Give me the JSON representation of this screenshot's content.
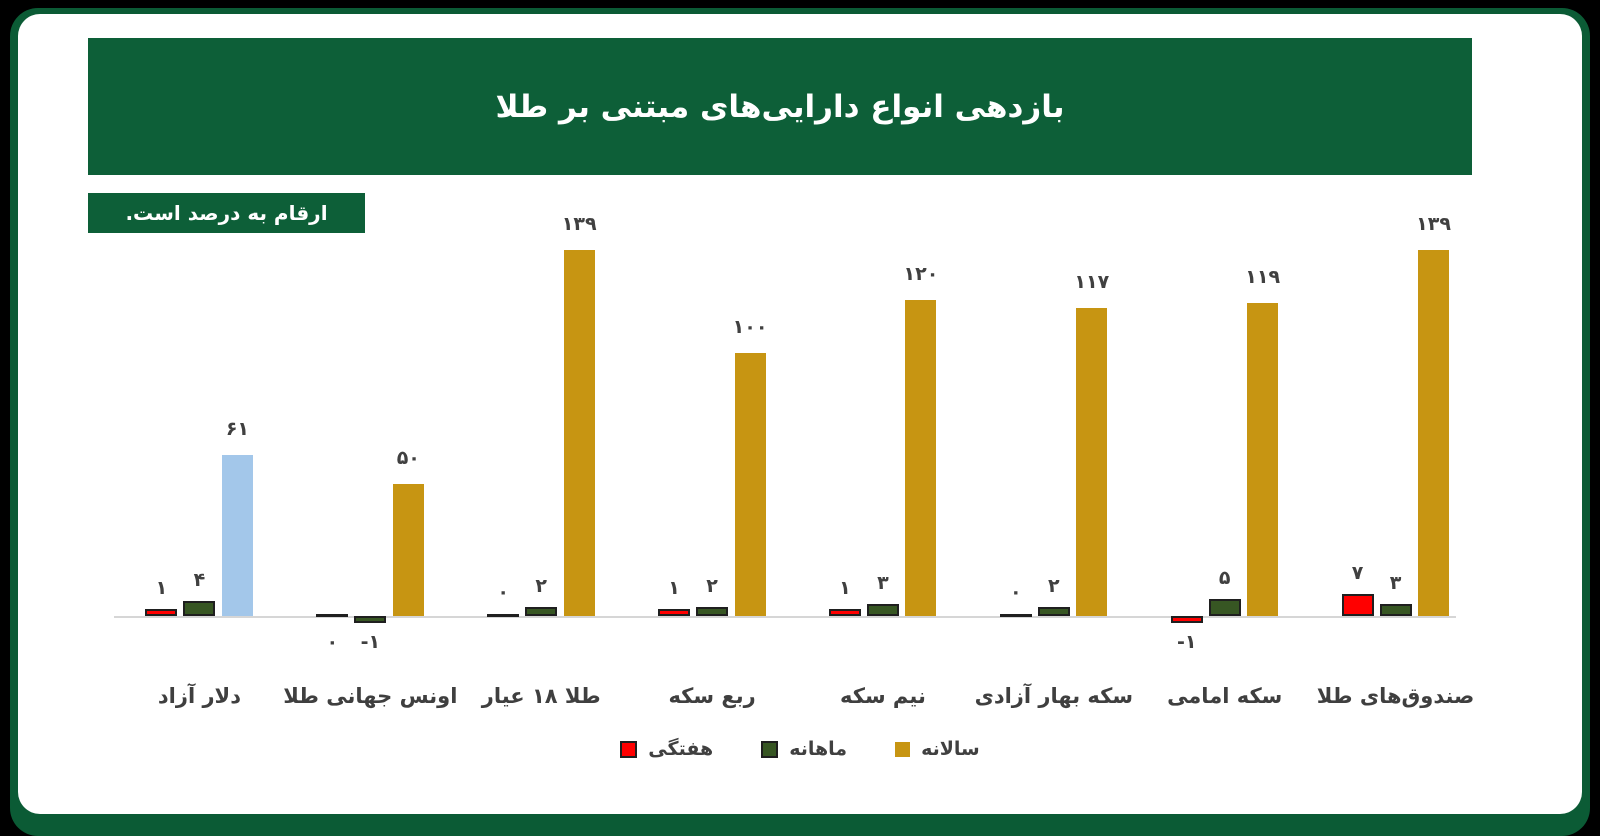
{
  "header": {
    "title": "بازدهی انواع دارایی‌های مبتنی بر طلا"
  },
  "note_badge": {
    "text": "ارقام به درصد است."
  },
  "colors": {
    "frame_green": "#0B5B35",
    "header_green": "#0D5F38",
    "badge_green": "#0D5F38",
    "axis_gray": "#D6D6D6",
    "label_gray": "#404040",
    "weekly_red": "#FF0000",
    "monthly_green": "#375623",
    "annual_gold": "#C79512",
    "annual_blue_override": "#A3C7EA",
    "bar_border": "#1F1F1F"
  },
  "legend": {
    "items": [
      {
        "key": "weekly",
        "label": "هفتگی",
        "color": "#FF0000",
        "bordered": true
      },
      {
        "key": "monthly",
        "label": "ماهانه",
        "color": "#375623",
        "bordered": true
      },
      {
        "key": "annual",
        "label": "سالانه",
        "color": "#C79512",
        "bordered": false
      }
    ]
  },
  "chart_data": {
    "type": "bar",
    "title": "بازدهی انواع دارایی‌های مبتنی بر طلا",
    "unit_note": "ارقام به درصد است.",
    "unit": "percent",
    "ylim": [
      -10,
      150
    ],
    "grid": false,
    "legend_position": "bottom-center",
    "categories": [
      "دلار آزاد",
      "اونس جهانی طلا",
      "طلا ۱۸ عیار",
      "ربع سکه",
      "نیم سکه",
      "سکه بهار آزادی",
      "سکه امامی",
      "صندوق‌های طلا"
    ],
    "series": [
      {
        "key": "weekly",
        "name": "هفتگی",
        "color": "#FF0000",
        "bordered": true,
        "values": [
          1,
          0,
          0,
          1,
          1,
          0,
          -1,
          7
        ],
        "labels_fa": [
          "۱",
          "۰",
          "۰",
          "۱",
          "۱",
          "۰",
          "-۱",
          "۷"
        ],
        "label_below": [
          false,
          true,
          false,
          false,
          false,
          false,
          true,
          false
        ]
      },
      {
        "key": "monthly",
        "name": "ماهانه",
        "color": "#375623",
        "bordered": true,
        "values": [
          4,
          -1,
          2,
          2,
          3,
          2,
          5,
          3
        ],
        "labels_fa": [
          "۴",
          "-۱",
          "۲",
          "۲",
          "۳",
          "۲",
          "۵",
          "۳"
        ],
        "label_below": [
          false,
          true,
          false,
          false,
          false,
          false,
          false,
          false
        ]
      },
      {
        "key": "annual",
        "name": "سالانه",
        "color": "#C79512",
        "bordered": false,
        "values": [
          61,
          50,
          139,
          100,
          120,
          117,
          119,
          139
        ],
        "labels_fa": [
          "۶۱",
          "۵۰",
          "۱۳۹",
          "۱۰۰",
          "۱۲۰",
          "۱۱۷",
          "۱۱۹",
          "۱۳۹"
        ],
        "bar_colors": [
          "#A3C7EA",
          null,
          null,
          null,
          null,
          null,
          null,
          null
        ],
        "label_below": [
          false,
          false,
          false,
          false,
          false,
          false,
          false,
          false
        ]
      }
    ]
  }
}
